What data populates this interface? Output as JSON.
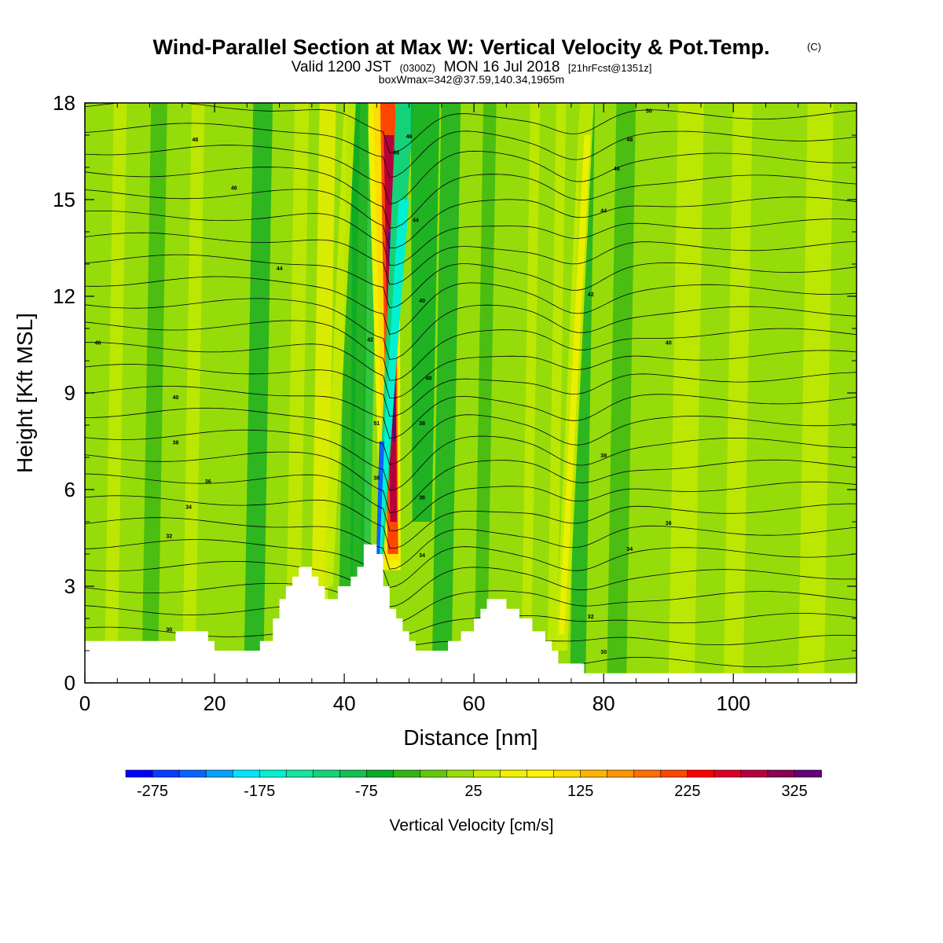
{
  "title": {
    "main": "Wind-Parallel Section at Max W: Vertical Velocity & Pot.Temp.",
    "copyright": "(C)",
    "valid_prefix": "Valid 1200 JST",
    "valid_utc": "(0300Z)",
    "valid_date": "MON 16 Jul 2018",
    "forecast": "[21hrFcst@1351z]",
    "boxmax": "boxWmax=342@37.59,140.34,1965m"
  },
  "chart_data": {
    "type": "heatmap",
    "title": "Wind-Parallel Section at Max W: Vertical Velocity & Pot.Temp.",
    "xlabel": "Distance [nm]",
    "ylabel": "Height [Kft MSL]",
    "xlim": [
      0,
      119
    ],
    "ylim": [
      0,
      18
    ],
    "x_ticks": [
      "0",
      "20",
      "40",
      "60",
      "80",
      "100"
    ],
    "y_ticks": [
      "0",
      "3",
      "6",
      "9",
      "12",
      "15",
      "18"
    ],
    "colorbar": {
      "label": "Vertical Velocity [cm/s]",
      "tick_labels": [
        "-275",
        "-175",
        "-75",
        "25",
        "125",
        "225",
        "325"
      ],
      "min": -300,
      "max": 350,
      "step": 25,
      "colors": [
        "#0000ff",
        "#0a3cff",
        "#0a64ff",
        "#00a0ff",
        "#00e6ff",
        "#00f0d2",
        "#14e6a0",
        "#14d278",
        "#14be50",
        "#0aaa28",
        "#32b414",
        "#64c80a",
        "#96dc0a",
        "#c8eb00",
        "#f0f000",
        "#fff500",
        "#ffdc00",
        "#ffb400",
        "#ff9600",
        "#ff6e00",
        "#ff4600",
        "#ff0000",
        "#dc0028",
        "#b4003c",
        "#8c0050",
        "#640078"
      ]
    },
    "terrain_kft": [
      [
        0,
        1.3
      ],
      [
        14,
        1.3
      ],
      [
        14,
        1.6
      ],
      [
        19,
        1.6
      ],
      [
        19,
        1.3
      ],
      [
        20,
        1.3
      ],
      [
        20,
        1.0
      ],
      [
        27,
        1.0
      ],
      [
        27,
        1.3
      ],
      [
        29,
        1.3
      ],
      [
        29,
        2.0
      ],
      [
        30,
        2.0
      ],
      [
        30,
        2.6
      ],
      [
        31,
        2.6
      ],
      [
        31,
        3.0
      ],
      [
        32,
        3.0
      ],
      [
        32,
        3.3
      ],
      [
        33,
        3.3
      ],
      [
        33,
        3.6
      ],
      [
        35,
        3.6
      ],
      [
        35,
        3.3
      ],
      [
        36,
        3.3
      ],
      [
        36,
        3.0
      ],
      [
        37,
        3.0
      ],
      [
        37,
        2.6
      ],
      [
        39,
        2.6
      ],
      [
        39,
        3.0
      ],
      [
        41,
        3.0
      ],
      [
        41,
        3.3
      ],
      [
        42,
        3.3
      ],
      [
        42,
        3.6
      ],
      [
        43,
        3.6
      ],
      [
        43,
        4.3
      ],
      [
        45,
        4.3
      ],
      [
        45,
        4.0
      ],
      [
        46,
        4.0
      ],
      [
        46,
        3.0
      ],
      [
        47,
        3.0
      ],
      [
        47,
        2.3
      ],
      [
        48,
        2.3
      ],
      [
        48,
        2.0
      ],
      [
        49,
        2.0
      ],
      [
        49,
        1.6
      ],
      [
        50,
        1.6
      ],
      [
        50,
        1.3
      ],
      [
        51,
        1.3
      ],
      [
        51,
        1.0
      ],
      [
        56,
        1.0
      ],
      [
        56,
        1.3
      ],
      [
        58,
        1.3
      ],
      [
        58,
        1.6
      ],
      [
        60,
        1.6
      ],
      [
        60,
        2.0
      ],
      [
        61,
        2.0
      ],
      [
        61,
        2.3
      ],
      [
        62,
        2.3
      ],
      [
        62,
        2.6
      ],
      [
        65,
        2.6
      ],
      [
        65,
        2.3
      ],
      [
        67,
        2.3
      ],
      [
        67,
        2.0
      ],
      [
        69,
        2.0
      ],
      [
        69,
        1.6
      ],
      [
        71,
        1.6
      ],
      [
        71,
        1.3
      ],
      [
        72,
        1.3
      ],
      [
        72,
        1.0
      ],
      [
        73,
        1.0
      ],
      [
        73,
        0.6
      ],
      [
        77,
        0.6
      ],
      [
        77,
        0.3
      ],
      [
        119,
        0.3
      ]
    ],
    "theta_contour_labels": [
      "30",
      "32",
      "34",
      "36",
      "38",
      "40",
      "42",
      "44",
      "46",
      "48",
      "50"
    ],
    "max_w_cm_s": 342,
    "max_w_location": "37.59,140.34",
    "max_w_height_m": 1965
  }
}
